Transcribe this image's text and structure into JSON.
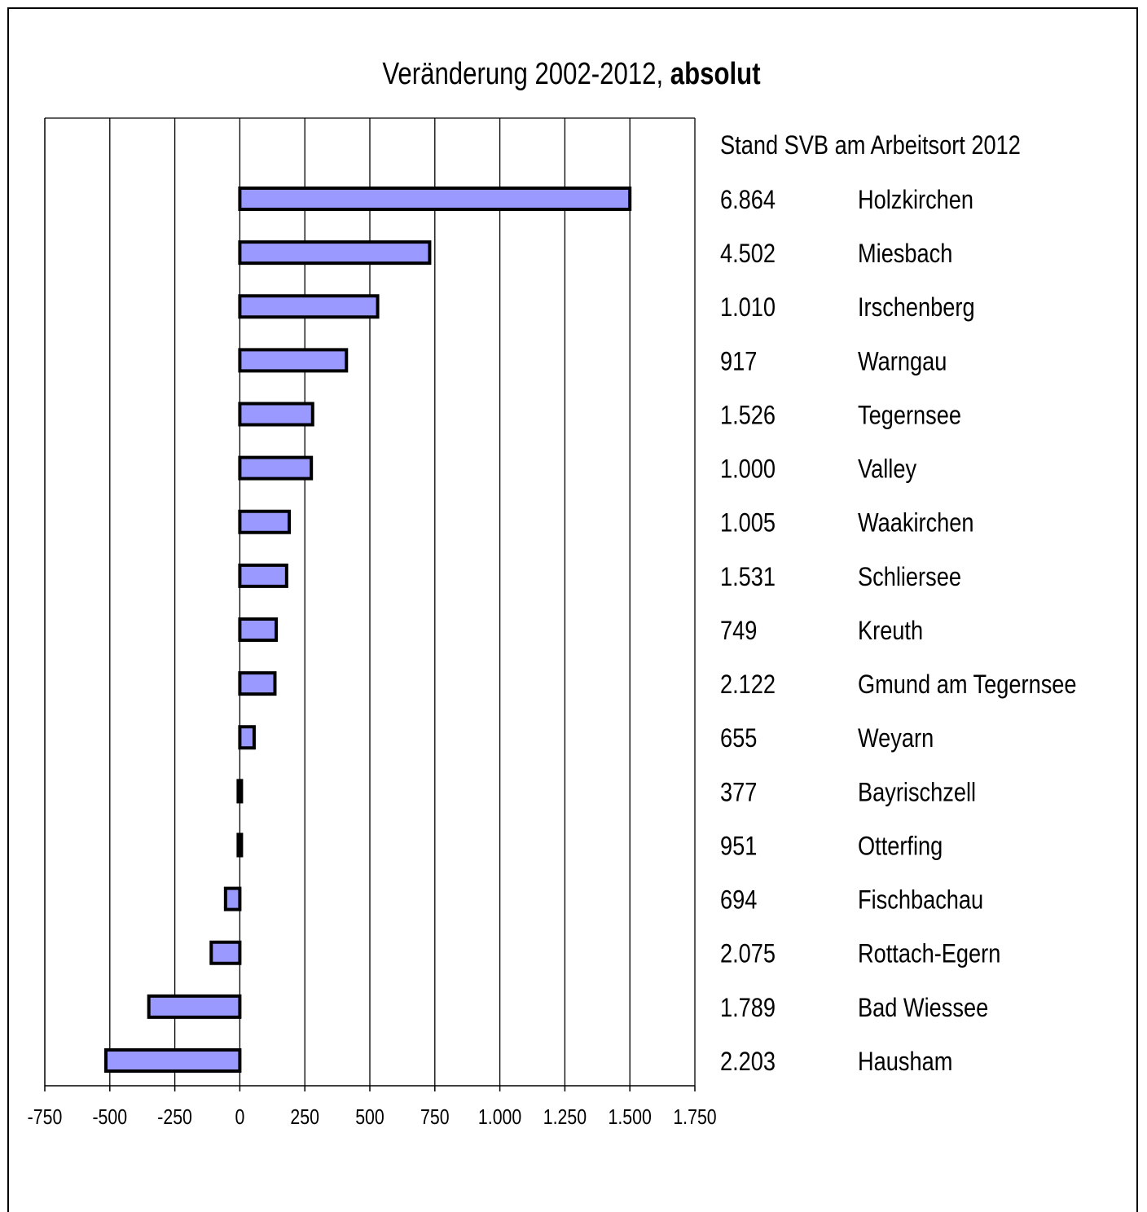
{
  "title": {
    "main": "Veränderung 2002-2012, ",
    "bold": "absolut"
  },
  "side_header": "Stand SVB am Arbeitsort 2012",
  "bar_color": "#9999ff",
  "chart_data": {
    "type": "bar",
    "orientation": "horizontal",
    "title": "Veränderung 2002-2012, absolut",
    "xlim": [
      -750,
      1750
    ],
    "x_ticks": [
      -750,
      -500,
      -250,
      0,
      250,
      500,
      750,
      1000,
      1250,
      1500,
      1750
    ],
    "x_tick_labels": [
      "-750",
      "-500",
      "-250",
      "0",
      "250",
      "500",
      "750",
      "1.000",
      "1.250",
      "1.500",
      "1.750"
    ],
    "grid": "vertical",
    "categories": [
      "Holzkirchen",
      "Miesbach",
      "Irschenberg",
      "Warngau",
      "Tegernsee",
      "Valley",
      "Waakirchen",
      "Schliersee",
      "Kreuth",
      "Gmund am Tegernsee",
      "Weyarn",
      "Bayrischzell",
      "Otterfing",
      "Fischbachau",
      "Rottach-Egern",
      "Bad Wiessee",
      "Hausham"
    ],
    "values": [
      1500,
      730,
      530,
      410,
      280,
      275,
      190,
      180,
      140,
      135,
      55,
      -5,
      -5,
      -55,
      -110,
      -350,
      -515
    ],
    "stand_2012": [
      "6.864",
      "4.502",
      "1.010",
      "917",
      "1.526",
      "1.000",
      "1.005",
      "1.531",
      "749",
      "2.122",
      "655",
      "377",
      "951",
      "694",
      "2.075",
      "1.789",
      "2.203"
    ]
  }
}
